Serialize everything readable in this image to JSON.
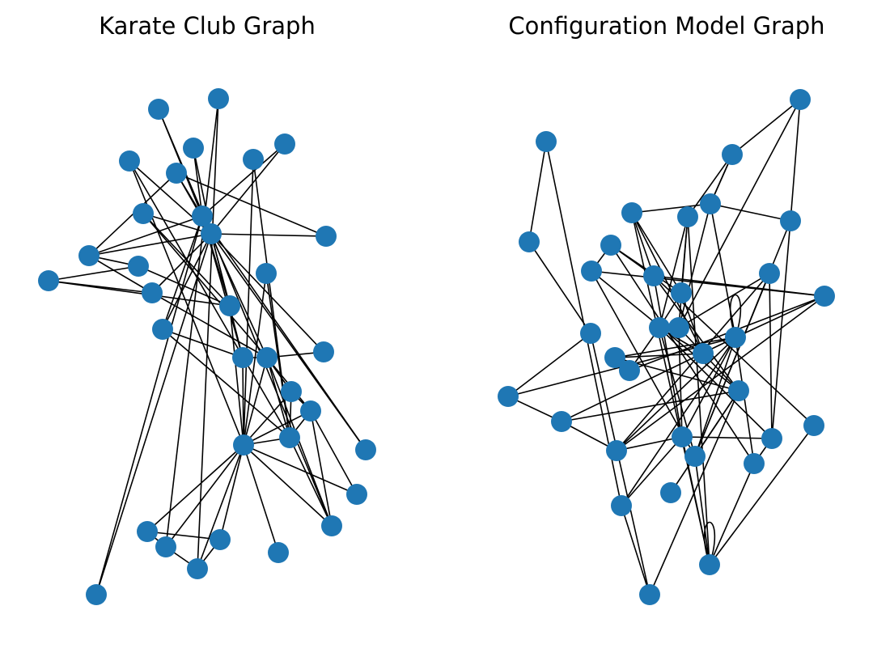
{
  "node_color": "#1f77b4",
  "edge_color": "#000000",
  "panels": [
    {
      "title": "Karate Club Graph",
      "node_count": 34,
      "edges": [
        [
          0,
          1
        ],
        [
          0,
          2
        ],
        [
          0,
          3
        ],
        [
          0,
          4
        ],
        [
          0,
          5
        ],
        [
          0,
          6
        ],
        [
          0,
          7
        ],
        [
          0,
          8
        ],
        [
          0,
          10
        ],
        [
          0,
          11
        ],
        [
          0,
          12
        ],
        [
          0,
          13
        ],
        [
          0,
          17
        ],
        [
          0,
          19
        ],
        [
          0,
          21
        ],
        [
          0,
          31
        ],
        [
          1,
          2
        ],
        [
          1,
          3
        ],
        [
          1,
          7
        ],
        [
          1,
          13
        ],
        [
          1,
          17
        ],
        [
          1,
          19
        ],
        [
          1,
          21
        ],
        [
          1,
          30
        ],
        [
          2,
          3
        ],
        [
          2,
          7
        ],
        [
          2,
          8
        ],
        [
          2,
          9
        ],
        [
          2,
          13
        ],
        [
          2,
          27
        ],
        [
          2,
          28
        ],
        [
          2,
          32
        ],
        [
          3,
          7
        ],
        [
          3,
          12
        ],
        [
          3,
          13
        ],
        [
          4,
          6
        ],
        [
          4,
          10
        ],
        [
          5,
          6
        ],
        [
          5,
          10
        ],
        [
          5,
          16
        ],
        [
          6,
          16
        ],
        [
          8,
          30
        ],
        [
          8,
          32
        ],
        [
          8,
          33
        ],
        [
          9,
          33
        ],
        [
          13,
          33
        ],
        [
          14,
          32
        ],
        [
          14,
          33
        ],
        [
          15,
          32
        ],
        [
          15,
          33
        ],
        [
          18,
          32
        ],
        [
          18,
          33
        ],
        [
          19,
          33
        ],
        [
          20,
          32
        ],
        [
          20,
          33
        ],
        [
          22,
          32
        ],
        [
          22,
          33
        ],
        [
          23,
          25
        ],
        [
          23,
          27
        ],
        [
          23,
          29
        ],
        [
          23,
          32
        ],
        [
          23,
          33
        ],
        [
          24,
          25
        ],
        [
          24,
          27
        ],
        [
          24,
          31
        ],
        [
          25,
          31
        ],
        [
          26,
          29
        ],
        [
          26,
          33
        ],
        [
          27,
          33
        ],
        [
          28,
          31
        ],
        [
          28,
          33
        ],
        [
          29,
          32
        ],
        [
          29,
          33
        ],
        [
          30,
          32
        ],
        [
          30,
          33
        ],
        [
          31,
          32
        ],
        [
          31,
          33
        ],
        [
          32,
          33
        ]
      ]
    },
    {
      "title": "Configuration Model Graph",
      "node_count": 34,
      "edges": [
        [
          0,
          1
        ],
        [
          0,
          6
        ],
        [
          1,
          2
        ],
        [
          2,
          3
        ],
        [
          3,
          4
        ],
        [
          4,
          9
        ],
        [
          4,
          14
        ],
        [
          4,
          26
        ],
        [
          5,
          6
        ],
        [
          5,
          26
        ],
        [
          6,
          19
        ],
        [
          7,
          21
        ],
        [
          7,
          8
        ],
        [
          7,
          10
        ],
        [
          8,
          12
        ],
        [
          8,
          22
        ],
        [
          9,
          13
        ],
        [
          9,
          11
        ],
        [
          9,
          14
        ],
        [
          10,
          12
        ],
        [
          10,
          25
        ],
        [
          10,
          16
        ],
        [
          11,
          21
        ],
        [
          11,
          16
        ],
        [
          12,
          17
        ],
        [
          12,
          14
        ],
        [
          13,
          14
        ],
        [
          13,
          18
        ],
        [
          13,
          23
        ],
        [
          14,
          15
        ],
        [
          14,
          16
        ],
        [
          14,
          19
        ],
        [
          15,
          25
        ],
        [
          16,
          23
        ],
        [
          16,
          20
        ],
        [
          16,
          28
        ],
        [
          17,
          18
        ],
        [
          17,
          27
        ],
        [
          17,
          31
        ],
        [
          18,
          19
        ],
        [
          18,
          24
        ],
        [
          18,
          26
        ],
        [
          18,
          32
        ],
        [
          19,
          20
        ],
        [
          19,
          21
        ],
        [
          20,
          22
        ],
        [
          21,
          22
        ],
        [
          22,
          27
        ],
        [
          22,
          28
        ],
        [
          23,
          24
        ],
        [
          24,
          27
        ],
        [
          25,
          28
        ],
        [
          26,
          29
        ],
        [
          26,
          33
        ],
        [
          27,
          28
        ],
        [
          27,
          31
        ],
        [
          28,
          31
        ],
        [
          28,
          30
        ],
        [
          29,
          30
        ],
        [
          29,
          31
        ],
        [
          13,
          30
        ],
        [
          15,
          20
        ],
        [
          17,
          20
        ],
        [
          3,
          14
        ],
        [
          12,
          21
        ],
        [
          9,
          19
        ],
        [
          21,
          28
        ],
        [
          11,
          25
        ],
        [
          5,
          2
        ],
        [
          6,
          14
        ],
        [
          29,
          14
        ],
        [
          19,
          25
        ],
        [
          16,
          26
        ],
        [
          20,
          32
        ],
        [
          15,
          24
        ],
        [
          23,
          26
        ],
        [
          21,
          26
        ],
        [
          12,
          8
        ]
      ],
      "self_loops": [
        14,
        20
      ]
    }
  ]
}
